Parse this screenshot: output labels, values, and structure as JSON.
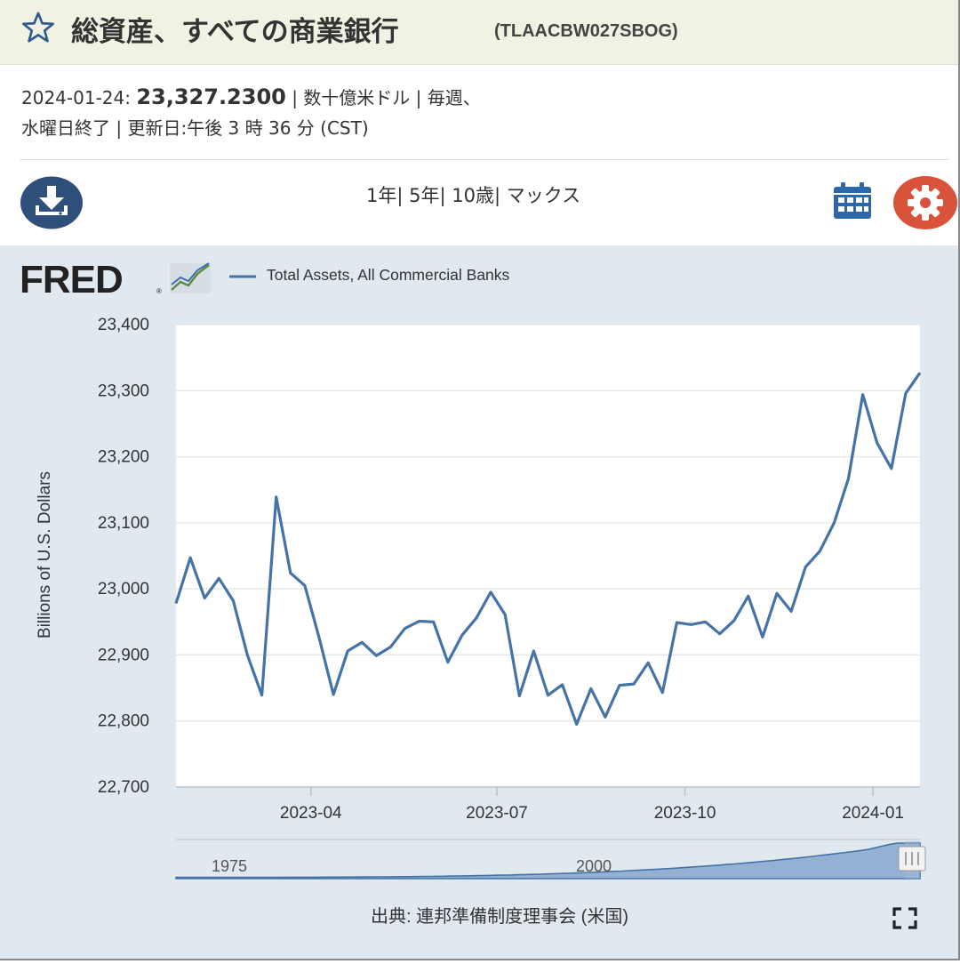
{
  "header": {
    "title": "総資産、すべての商業銀行",
    "series_id": "(TLAACBW027SBOG)"
  },
  "meta": {
    "date_label": "2024-01-24:",
    "value": "23,327.2300",
    "line1_rest": " | 数十億米ドル | 毎週、",
    "line2": "水曜日終了 | 更新日:午後 3 時 36 分 (CST)"
  },
  "toolbar": {
    "range_1y": "1年",
    "sep1": "| ",
    "range_5y": "5年",
    "sep2": "| ",
    "range_10y": "10歳",
    "sep3": "| ",
    "range_max": "マックス"
  },
  "footer": {
    "source": "出典: 連邦準備制度理事会 (米国)"
  },
  "icons": {
    "download": "download-icon",
    "calendar": "calendar-icon",
    "settings": "gear-icon",
    "fullscreen": "fullscreen-icon",
    "favorite": "star-icon"
  },
  "colors": {
    "series": "#4572a7",
    "download_bg": "#2e4f7a",
    "calendar": "#2e67a8",
    "settings_bg": "#d9533a",
    "header_bg": "#f1f2e3",
    "chart_bg": "#e1e9f0"
  },
  "chart_data": {
    "type": "line",
    "logo": "FRED",
    "ylabel": "Billions of U.S. Dollars",
    "ylim": [
      22700,
      23400
    ],
    "yticks": [
      "22,700",
      "22,800",
      "22,900",
      "23,000",
      "23,100",
      "23,200",
      "23,300",
      "23,400"
    ],
    "xtick_labels": [
      "2023-04",
      "2023-07",
      "2023-10",
      "2024-01"
    ],
    "xlim": [
      "2023-01-25",
      "2024-01-24"
    ],
    "grid": true,
    "legend_position": "top-left",
    "series": [
      {
        "name": "Total Assets, All Commercial Banks",
        "x": [
          "2023-01-25",
          "2023-02-01",
          "2023-02-08",
          "2023-02-15",
          "2023-02-22",
          "2023-03-01",
          "2023-03-08",
          "2023-03-15",
          "2023-03-22",
          "2023-03-29",
          "2023-04-05",
          "2023-04-12",
          "2023-04-19",
          "2023-04-26",
          "2023-05-03",
          "2023-05-10",
          "2023-05-17",
          "2023-05-24",
          "2023-05-31",
          "2023-06-07",
          "2023-06-14",
          "2023-06-21",
          "2023-06-28",
          "2023-07-05",
          "2023-07-12",
          "2023-07-19",
          "2023-07-26",
          "2023-08-02",
          "2023-08-09",
          "2023-08-16",
          "2023-08-23",
          "2023-08-30",
          "2023-09-06",
          "2023-09-13",
          "2023-09-20",
          "2023-09-27",
          "2023-10-04",
          "2023-10-11",
          "2023-10-18",
          "2023-10-25",
          "2023-11-01",
          "2023-11-08",
          "2023-11-15",
          "2023-11-22",
          "2023-11-29",
          "2023-12-06",
          "2023-12-13",
          "2023-12-20",
          "2023-12-27",
          "2024-01-03",
          "2024-01-10",
          "2024-01-17",
          "2024-01-24"
        ],
        "values": [
          22978,
          23047,
          22986,
          23016,
          22982,
          22899,
          22839,
          23139,
          23024,
          23005,
          22926,
          22840,
          22906,
          22919,
          22899,
          22912,
          22940,
          22951,
          22950,
          22889,
          22930,
          22956,
          22995,
          22961,
          22838,
          22906,
          22839,
          22855,
          22795,
          22849,
          22806,
          22854,
          22856,
          22888,
          22843,
          22949,
          22946,
          22950,
          22932,
          22952,
          22989,
          22927,
          22993,
          22966,
          23033,
          23057,
          23100,
          23167,
          23294,
          23221,
          23182,
          23296,
          23327
        ]
      }
    ],
    "navigator": {
      "labels": [
        "1975",
        "2000"
      ],
      "description": "Full-history overview with selected range at right end"
    }
  }
}
